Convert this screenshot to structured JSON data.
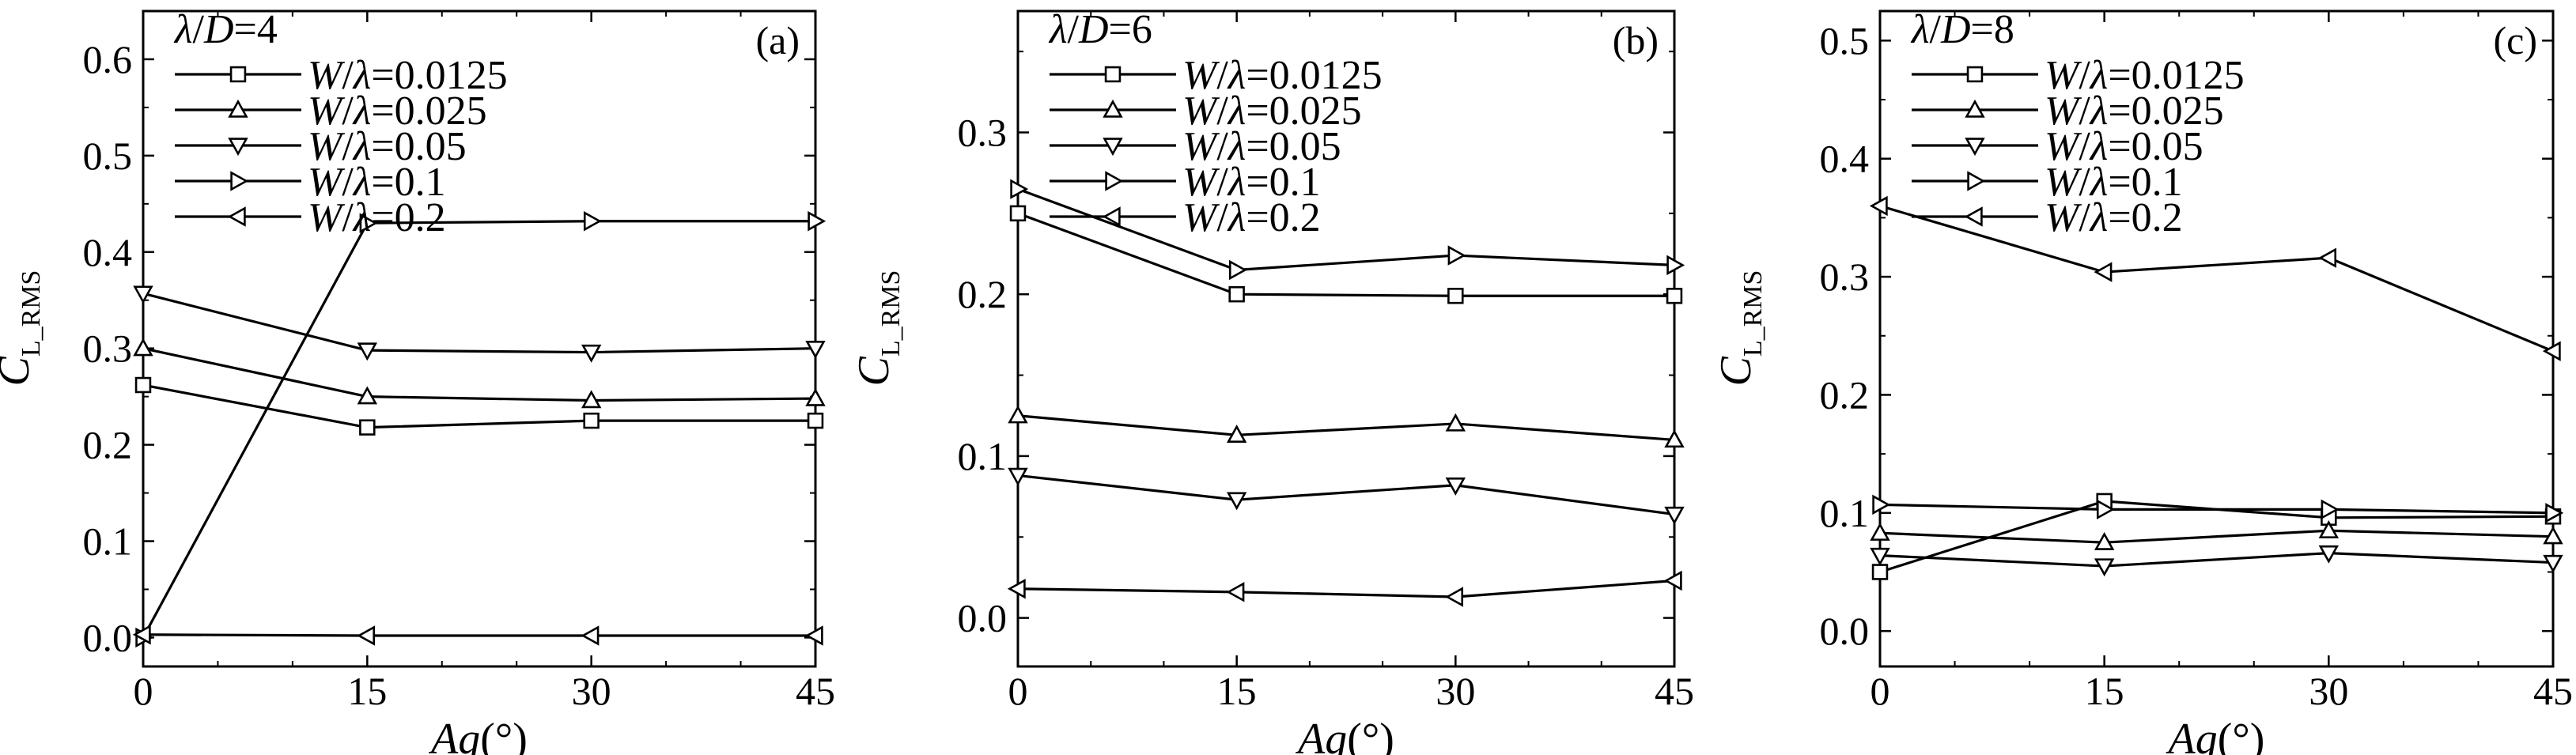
{
  "chart_data": [
    {
      "type": "line",
      "panel_label": "(a)",
      "legend_title": "λ/D=4",
      "xlabel_italic": "Ag",
      "xlabel_unit": "(°)",
      "ylabel_main": "C",
      "ylabel_sub": "L_RMS",
      "x": [
        0,
        15,
        30,
        45
      ],
      "xlim": [
        0,
        45
      ],
      "ylim": [
        -0.03,
        0.65
      ],
      "xticks": [
        "0",
        "15",
        "30",
        "45"
      ],
      "yticks": [
        "0.0",
        "0.1",
        "0.2",
        "0.3",
        "0.4",
        "0.5",
        "0.6"
      ],
      "series": [
        {
          "name": "W/λ=0.0125",
          "marker": "square",
          "values": [
            0.262,
            0.218,
            0.225,
            0.225
          ]
        },
        {
          "name": "W/λ=0.025",
          "marker": "triangle-up",
          "values": [
            0.3,
            0.25,
            0.246,
            0.248
          ]
        },
        {
          "name": "W/λ=0.05",
          "marker": "triangle-down",
          "values": [
            0.357,
            0.298,
            0.296,
            0.3
          ]
        },
        {
          "name": "W/λ=0.1",
          "marker": "triangle-right",
          "values": [
            0.0,
            0.43,
            0.432,
            0.432
          ]
        },
        {
          "name": "W/λ=0.2",
          "marker": "triangle-left",
          "values": [
            0.003,
            0.002,
            0.002,
            0.002
          ]
        }
      ]
    },
    {
      "type": "line",
      "panel_label": "(b)",
      "legend_title": "λ/D=6",
      "xlabel_italic": "Ag",
      "xlabel_unit": "(°)",
      "ylabel_main": "C",
      "ylabel_sub": "L_RMS",
      "x": [
        0,
        15,
        30,
        45
      ],
      "xlim": [
        0,
        45
      ],
      "ylim": [
        -0.03,
        0.375
      ],
      "xticks": [
        "0",
        "15",
        "30",
        "45"
      ],
      "yticks": [
        "0.0",
        "0.1",
        "0.2",
        "0.3"
      ],
      "series": [
        {
          "name": "W/λ=0.0125",
          "marker": "square",
          "values": [
            0.25,
            0.2,
            0.199,
            0.199
          ]
        },
        {
          "name": "W/λ=0.025",
          "marker": "triangle-up",
          "values": [
            0.125,
            0.113,
            0.12,
            0.11
          ]
        },
        {
          "name": "W/λ=0.05",
          "marker": "triangle-down",
          "values": [
            0.088,
            0.073,
            0.082,
            0.064
          ]
        },
        {
          "name": "W/λ=0.1",
          "marker": "triangle-right",
          "values": [
            0.265,
            0.215,
            0.224,
            0.218
          ]
        },
        {
          "name": "W/λ=0.2",
          "marker": "triangle-left",
          "values": [
            0.018,
            0.016,
            0.013,
            0.023
          ]
        }
      ]
    },
    {
      "type": "line",
      "panel_label": "(c)",
      "legend_title": "λ/D=8",
      "xlabel_italic": "Ag",
      "xlabel_unit": "(°)",
      "ylabel_main": "C",
      "ylabel_sub": "L_RMS",
      "x": [
        0,
        15,
        30,
        45
      ],
      "xlim": [
        0,
        45
      ],
      "ylim": [
        -0.03,
        0.525
      ],
      "xticks": [
        "0",
        "15",
        "30",
        "45"
      ],
      "yticks": [
        "0.0",
        "0.1",
        "0.2",
        "0.3",
        "0.4",
        "0.5"
      ],
      "series": [
        {
          "name": "W/λ=0.0125",
          "marker": "square",
          "values": [
            0.05,
            0.11,
            0.096,
            0.097
          ]
        },
        {
          "name": "W/λ=0.025",
          "marker": "triangle-up",
          "values": [
            0.083,
            0.075,
            0.085,
            0.08
          ]
        },
        {
          "name": "W/λ=0.05",
          "marker": "triangle-down",
          "values": [
            0.064,
            0.055,
            0.066,
            0.058
          ]
        },
        {
          "name": "W/λ=0.1",
          "marker": "triangle-right",
          "values": [
            0.107,
            0.103,
            0.103,
            0.1
          ]
        },
        {
          "name": "W/λ=0.2",
          "marker": "triangle-left",
          "values": [
            0.36,
            0.304,
            0.316,
            0.237
          ]
        }
      ]
    }
  ]
}
